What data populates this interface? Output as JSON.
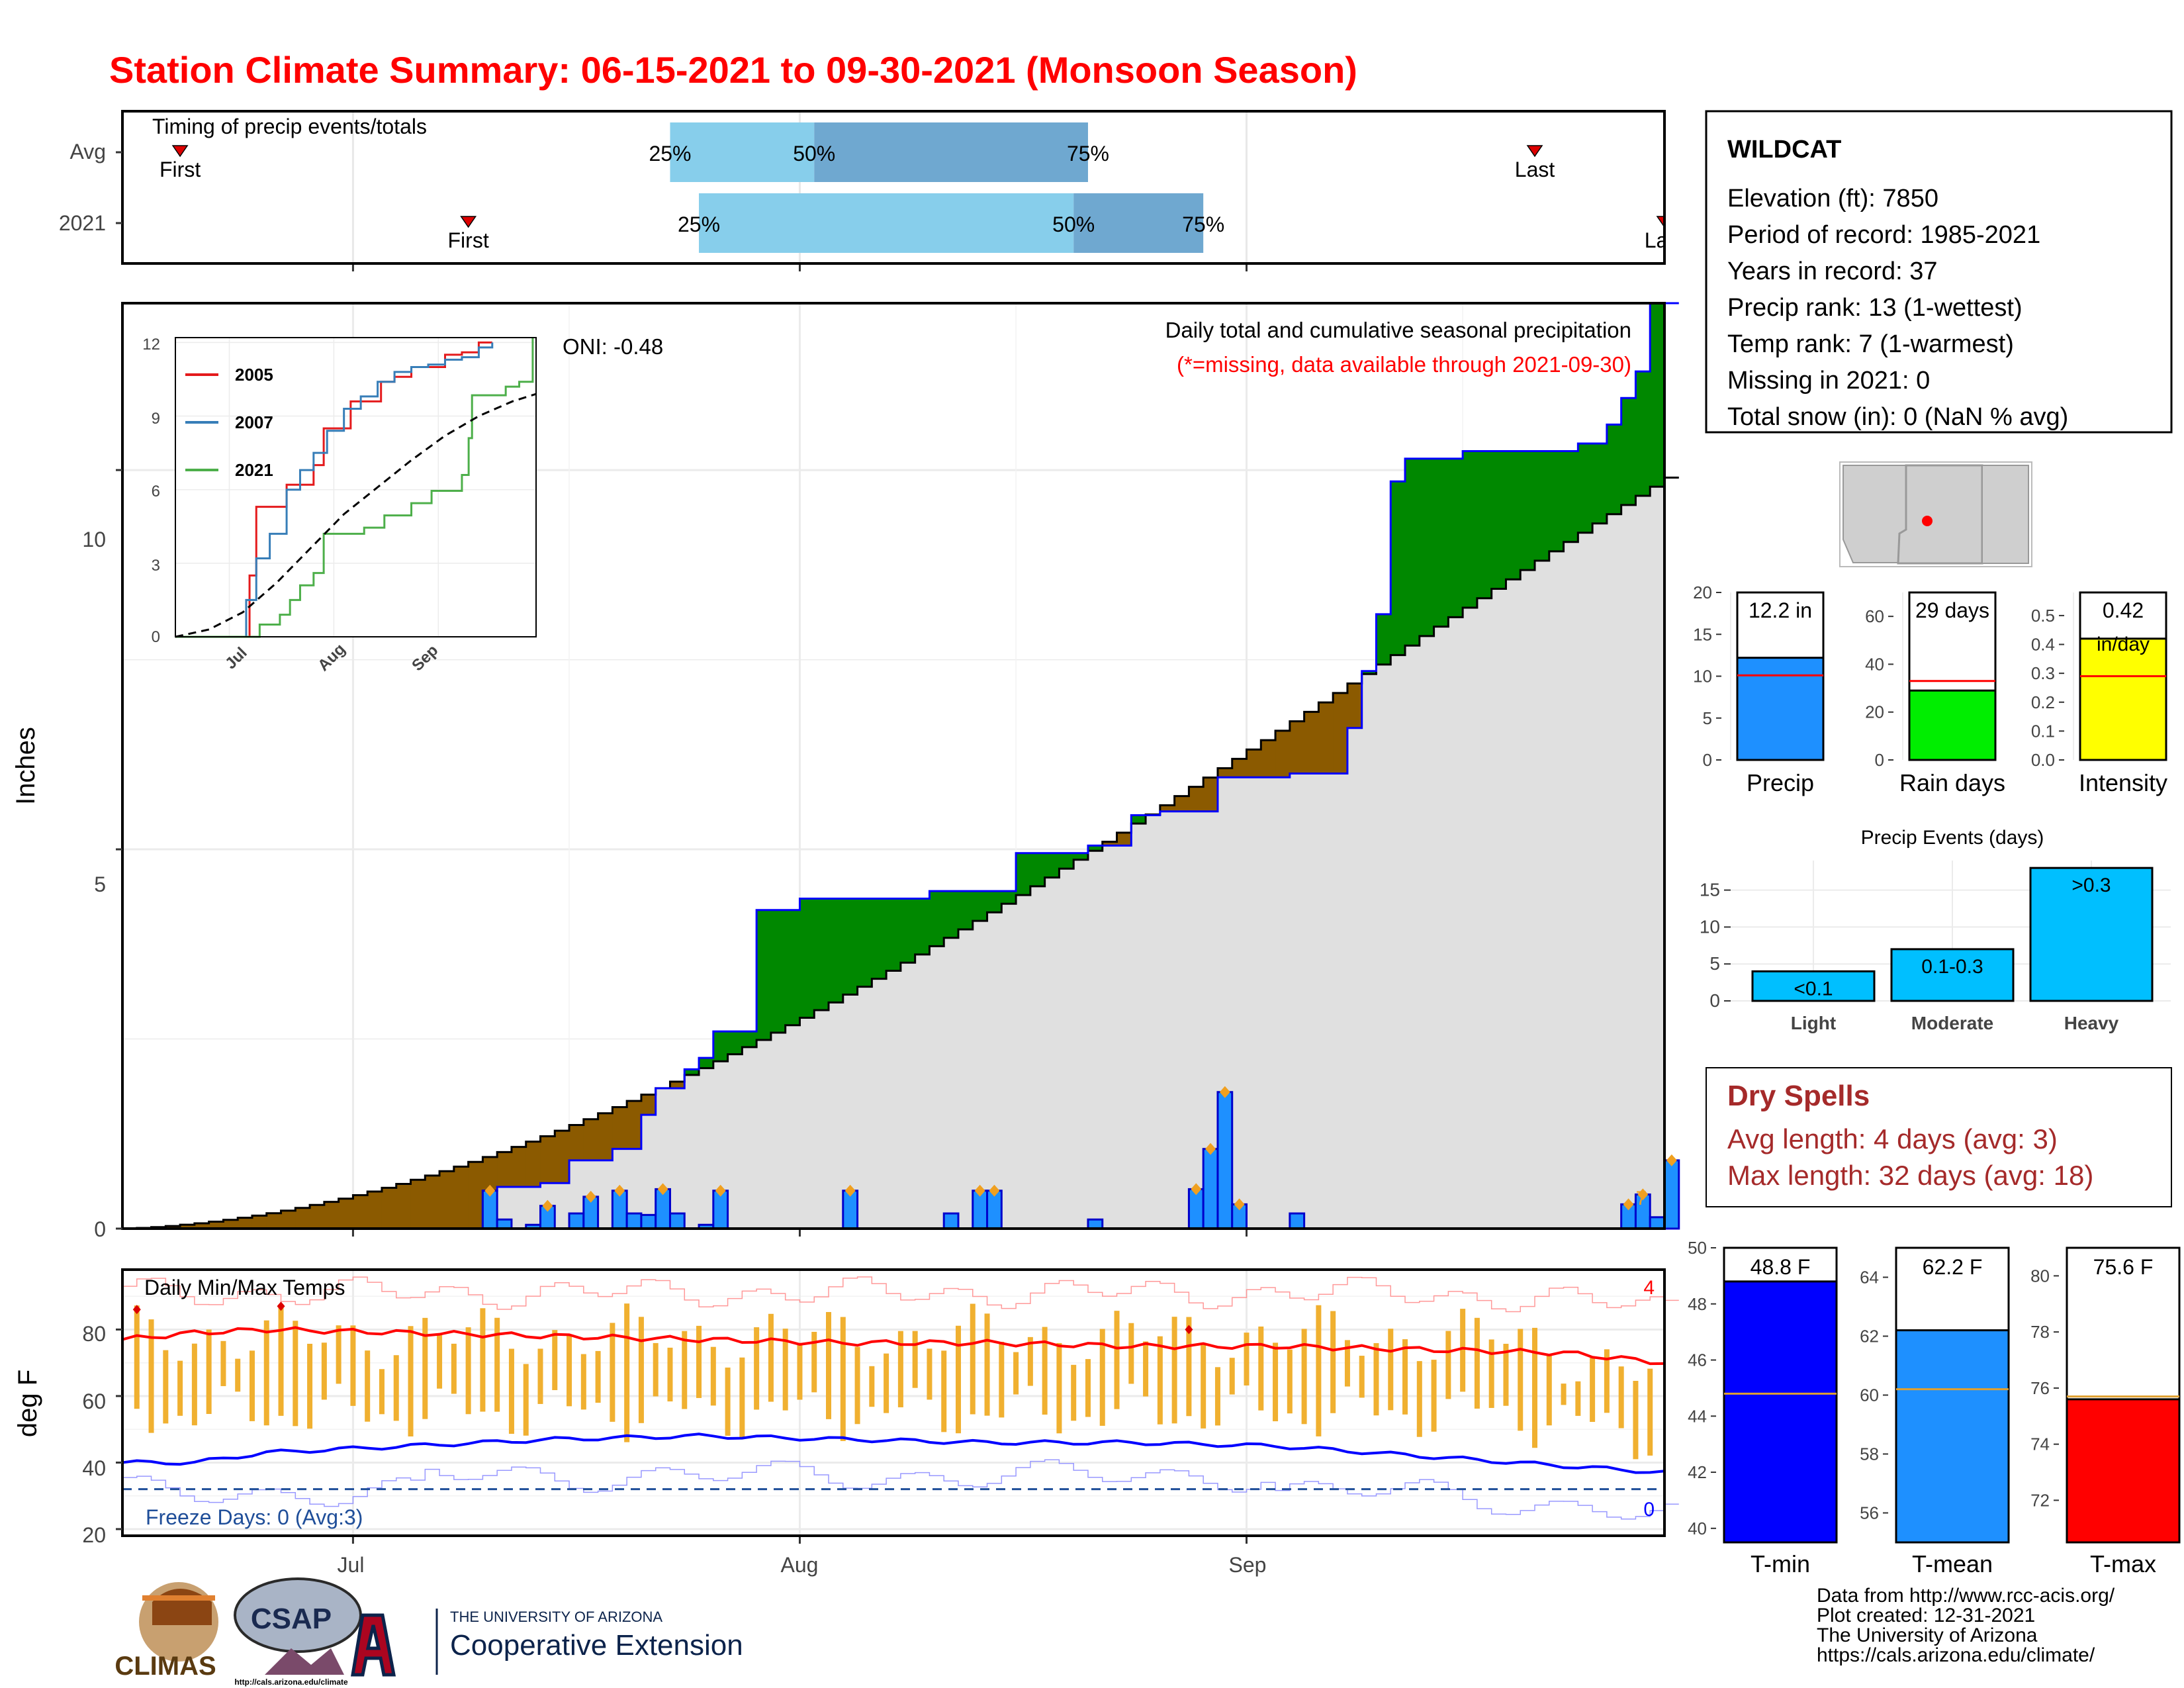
{
  "title": "Station Climate Summary: 06-15-2021 to 09-30-2021 (Monsoon Season)",
  "timing": {
    "label": "Timing of precip events/totals",
    "rows": [
      "Avg",
      "2021"
    ],
    "first_label": "First",
    "last_label": "Last",
    "avg": {
      "first": "2021-06-19",
      "p25": "2021-07-23",
      "p50": "2021-08-02",
      "p75": "2021-08-21",
      "last": "2021-09-21"
    },
    "y2021": {
      "first": "2021-07-09",
      "p25": "2021-07-25",
      "p50": "2021-08-20",
      "p75": "2021-08-29",
      "last": "2021-09-30"
    },
    "pct_labels": [
      "25%",
      "50%",
      "75%"
    ]
  },
  "precip_panel": {
    "ylabel": "Inches",
    "oni": "ONI: -0.48",
    "heading": "Daily total and cumulative seasonal precipitation",
    "note": "(*=missing, data available through 2021-09-30)",
    "yticks": [
      "0",
      "5",
      "10"
    ]
  },
  "inset": {
    "yticks": [
      "0",
      "3",
      "6",
      "9",
      "12"
    ],
    "xticks": [
      "Jul",
      "Aug",
      "Sep"
    ],
    "legend": [
      "2005",
      "2007",
      "2021"
    ]
  },
  "temp_panel": {
    "ylabel": "deg F",
    "label": "Daily Min/Max Temps",
    "freeze": "Freeze Days: 0 (Avg:3)",
    "max_count": "4",
    "min_count": "0",
    "yticks": [
      "20",
      "40",
      "60",
      "80"
    ],
    "xticks": [
      "Jul",
      "Aug",
      "Sep"
    ]
  },
  "station": {
    "name": "WILDCAT",
    "lines": [
      "Elevation (ft): 7850",
      "Period of record: 1985-2021",
      "Years in record: 37",
      "Precip rank: 13 (1-wettest)",
      "Temp rank: 7 (1-warmest)",
      "Missing in 2021: 0",
      "Total snow (in): 0 (NaN % avg)"
    ]
  },
  "summary_bars": {
    "precip": {
      "label": "Precip",
      "value_label": "12.2 in",
      "yticks": [
        "0",
        "5",
        "10",
        "15",
        "20"
      ]
    },
    "raindays": {
      "label": "Rain days",
      "value_label": "29 days",
      "yticks": [
        "0",
        "20",
        "40",
        "60"
      ]
    },
    "intensity": {
      "label": "Intensity",
      "value_label": "0.42",
      "unit": "in/day",
      "yticks": [
        "0.0",
        "0.1",
        "0.2",
        "0.3",
        "0.4",
        "0.5"
      ]
    }
  },
  "events": {
    "title": "Precip Events (days)",
    "yticks": [
      "0",
      "5",
      "10",
      "15"
    ]
  },
  "dry_spells": {
    "title": "Dry Spells",
    "avg": "Avg length: 4 days (avg: 3)",
    "max": "Max length: 32 days (avg: 18)"
  },
  "temp_bars": {
    "tmin": {
      "label": "T-min",
      "value_label": "48.8 F",
      "yticks": [
        "40",
        "42",
        "44",
        "46",
        "48",
        "50"
      ]
    },
    "tmean": {
      "label": "T-mean",
      "value_label": "62.2 F",
      "yticks": [
        "56",
        "58",
        "60",
        "62",
        "64"
      ]
    },
    "tmax": {
      "label": "T-max",
      "value_label": "75.6 F",
      "yticks": [
        "72",
        "74",
        "76",
        "78",
        "80"
      ]
    }
  },
  "footer": {
    "lines": [
      "Data from http://www.rcc-acis.org/",
      "Plot created: 12-31-2021",
      "The University of Arizona",
      "https://cals.arizona.edu/climate/"
    ],
    "climas": "CLIMAS",
    "csap": "CSAP",
    "csap_url": "http://cals.arizona.edu/climate",
    "ua_line1": "THE UNIVERSITY OF ARIZONA",
    "ua_line2": "Cooperative Extension"
  },
  "colors": {
    "title": "#ff0000",
    "below_avg": "#8b5a00",
    "above_avg": "#008800",
    "cum2021_line": "#0000ff",
    "avg_fill": "#e0e0e0",
    "daily_bar": "#1e90ff",
    "q25_75": "#87ceeb",
    "q50": "#6fa8d0",
    "max_temp": "#ff0000",
    "min_temp": "#0000ff",
    "range_bar": "#f0b030",
    "dry_spell": "#a52a2a",
    "events_bar": "#00bfff",
    "precip_bar": "#1e90ff",
    "raindays_bar": "#00ee00",
    "intensity_bar": "#ffff00"
  },
  "chart_data": [
    {
      "type": "line",
      "name": "cumulative_precip",
      "ylim": [
        0,
        12.2
      ],
      "xlim": [
        "2021-06-15",
        "2021-09-30"
      ],
      "cum_2021": [
        [
          0,
          0
        ],
        [
          25,
          0.5
        ],
        [
          26,
          0.55
        ],
        [
          29,
          0.6
        ],
        [
          31,
          0.9
        ],
        [
          32,
          0.9
        ],
        [
          34,
          1.05
        ],
        [
          36,
          1.5
        ],
        [
          37,
          1.85
        ],
        [
          39,
          2.1
        ],
        [
          40,
          2.25
        ],
        [
          41,
          2.6
        ],
        [
          44,
          4.2
        ],
        [
          47,
          4.35
        ],
        [
          56,
          4.45
        ],
        [
          62,
          4.95
        ],
        [
          67,
          5.05
        ],
        [
          70,
          5.45
        ],
        [
          72,
          5.5
        ],
        [
          76,
          5.95
        ],
        [
          81,
          6.0
        ],
        [
          85,
          6.6
        ],
        [
          86,
          7.35
        ],
        [
          87,
          8.1
        ],
        [
          88,
          9.85
        ],
        [
          89,
          10.15
        ],
        [
          93,
          10.25
        ],
        [
          98,
          10.25
        ],
        [
          101,
          10.35
        ],
        [
          103,
          10.6
        ],
        [
          104,
          10.95
        ],
        [
          105,
          11.3
        ],
        [
          106,
          12.2
        ]
      ],
      "avg_cum_end": 9.9,
      "daily_2021": [
        [
          25,
          0.5
        ],
        [
          26,
          0.12
        ],
        [
          28,
          0.05
        ],
        [
          29,
          0.3
        ],
        [
          31,
          0.2
        ],
        [
          32,
          0.42
        ],
        [
          34,
          0.5
        ],
        [
          35,
          0.2
        ],
        [
          36,
          0.18
        ],
        [
          37,
          0.52
        ],
        [
          38,
          0.2
        ],
        [
          40,
          0.05
        ],
        [
          41,
          0.5
        ],
        [
          50,
          0.5
        ],
        [
          57,
          0.2
        ],
        [
          59,
          0.5
        ],
        [
          60,
          0.5
        ],
        [
          67,
          0.12
        ],
        [
          74,
          0.52
        ],
        [
          75,
          1.05
        ],
        [
          76,
          1.8
        ],
        [
          77,
          0.32
        ],
        [
          81,
          0.2
        ],
        [
          104,
          0.32
        ],
        [
          105,
          0.45
        ],
        [
          106,
          0.15
        ],
        [
          107,
          0.9
        ]
      ]
    },
    {
      "type": "line",
      "name": "inset_cumulative",
      "series": [
        {
          "name": "2005",
          "values": [
            [
              0,
              0
            ],
            [
              20,
              0
            ],
            [
              22,
              2.5
            ],
            [
              24,
              5.3
            ],
            [
              28,
              5.3
            ],
            [
              33,
              6.2
            ],
            [
              41,
              7.0
            ],
            [
              44,
              8.5
            ],
            [
              48,
              8.5
            ],
            [
              52,
              9.6
            ],
            [
              56,
              9.6
            ],
            [
              61,
              10.4
            ],
            [
              65,
              10.6
            ],
            [
              70,
              11.0
            ],
            [
              75,
              11.0
            ],
            [
              80,
              11.5
            ],
            [
              85,
              11.6
            ],
            [
              90,
              12.0
            ],
            [
              94,
              12.0
            ]
          ]
        },
        {
          "name": "2007",
          "values": [
            [
              0,
              0
            ],
            [
              18,
              0
            ],
            [
              21,
              1.5
            ],
            [
              24,
              3.2
            ],
            [
              28,
              4.2
            ],
            [
              33,
              6.0
            ],
            [
              37,
              6.8
            ],
            [
              41,
              7.5
            ],
            [
              45,
              8.4
            ],
            [
              50,
              9.3
            ],
            [
              55,
              9.8
            ],
            [
              60,
              10.4
            ],
            [
              65,
              10.8
            ],
            [
              70,
              11.0
            ],
            [
              75,
              11.1
            ],
            [
              80,
              11.3
            ],
            [
              85,
              11.4
            ],
            [
              90,
              11.8
            ],
            [
              94,
              12.0
            ]
          ]
        },
        {
          "name": "2021",
          "values": [
            [
              0,
              0
            ],
            [
              25,
              0.5
            ],
            [
              31,
              0.9
            ],
            [
              34,
              1.5
            ],
            [
              37,
              2.1
            ],
            [
              41,
              2.6
            ],
            [
              44,
              4.2
            ],
            [
              56,
              4.45
            ],
            [
              62,
              4.95
            ],
            [
              70,
              5.45
            ],
            [
              76,
              5.95
            ],
            [
              85,
              6.6
            ],
            [
              87,
              8.1
            ],
            [
              88,
              9.85
            ],
            [
              98,
              10.2
            ],
            [
              102,
              10.4
            ],
            [
              106,
              12.2
            ]
          ]
        },
        {
          "name": "Average",
          "values": [
            [
              0,
              0
            ],
            [
              10,
              0.3
            ],
            [
              20,
              1.0
            ],
            [
              30,
              2.2
            ],
            [
              40,
              3.6
            ],
            [
              50,
              5.0
            ],
            [
              60,
              6.1
            ],
            [
              70,
              7.2
            ],
            [
              80,
              8.2
            ],
            [
              90,
              9.0
            ],
            [
              100,
              9.6
            ],
            [
              107,
              9.9
            ]
          ]
        }
      ],
      "xlabel": "",
      "ylabel": "",
      "ylim": [
        0,
        12
      ]
    },
    {
      "type": "line",
      "name": "daily_temps",
      "ylim": [
        18,
        98
      ],
      "max_avg": [
        [
          0,
          77
        ],
        [
          5,
          79
        ],
        [
          10,
          80
        ],
        [
          20,
          79
        ],
        [
          30,
          78
        ],
        [
          40,
          77
        ],
        [
          50,
          76
        ],
        [
          60,
          76
        ],
        [
          70,
          75
        ],
        [
          80,
          75
        ],
        [
          90,
          74
        ],
        [
          100,
          73
        ],
        [
          107,
          70
        ]
      ],
      "min_avg": [
        [
          0,
          40
        ],
        [
          5,
          40
        ],
        [
          10,
          43
        ],
        [
          20,
          45
        ],
        [
          30,
          47
        ],
        [
          40,
          48
        ],
        [
          50,
          47
        ],
        [
          60,
          46
        ],
        [
          70,
          46
        ],
        [
          80,
          45
        ],
        [
          90,
          42
        ],
        [
          100,
          39
        ],
        [
          107,
          37
        ]
      ],
      "freeze_threshold": 32
    },
    {
      "type": "bar",
      "name": "precip_total",
      "categories": [
        "Precip"
      ],
      "values": [
        12.2
      ],
      "avg": 10.1,
      "ylim": [
        0,
        20
      ]
    },
    {
      "type": "bar",
      "name": "rain_days",
      "categories": [
        "Rain days"
      ],
      "values": [
        29
      ],
      "avg": 33,
      "ylim": [
        0,
        70
      ]
    },
    {
      "type": "bar",
      "name": "intensity",
      "categories": [
        "Intensity"
      ],
      "values": [
        0.42
      ],
      "avg": 0.29,
      "ylim": [
        0,
        0.58
      ]
    },
    {
      "type": "bar",
      "name": "precip_events",
      "categories": [
        "Light",
        "Moderate",
        "Heavy"
      ],
      "bar_labels": [
        "<0.1",
        "0.1-0.3",
        ">0.3"
      ],
      "values": [
        4,
        7,
        18
      ],
      "ylim": [
        0,
        19
      ]
    },
    {
      "type": "bar",
      "name": "temperature_summary",
      "categories": [
        "T-min",
        "T-mean",
        "T-max"
      ],
      "values": [
        48.8,
        62.2,
        75.6
      ],
      "avg": [
        44.8,
        60.2,
        75.7
      ],
      "ylims": [
        [
          39.5,
          50
        ],
        [
          55,
          65
        ],
        [
          70.5,
          81
        ]
      ]
    }
  ]
}
